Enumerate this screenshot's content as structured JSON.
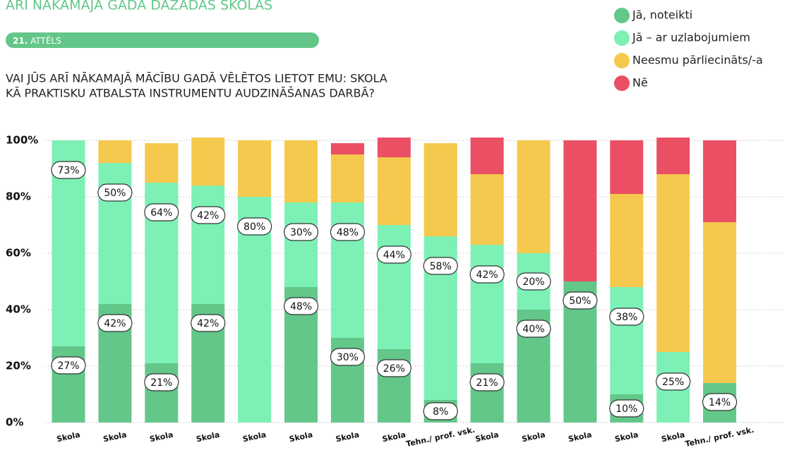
{
  "chart_data": {
    "type": "stacked_bar",
    "title": "ARĪ NĀKAMAJĀ GADĀ DAŽĀDĀS SKOLĀS",
    "figure_number": "21.",
    "figure_label": "ATTĒLS",
    "subtitle": [
      "VAI JŪS ARĪ NĀKAMAJĀ MĀCĪBU GADĀ VĒLĒTOS LIETOT EMU: SKOLA",
      "KĀ PRAKTISKU ATBALSTA INSTRUMENTU AUDZINĀŠANAS DARBĀ?"
    ],
    "categories": [
      "Skola",
      "Skola",
      "Skola",
      "Skola",
      "Skola",
      "Skola",
      "Skola",
      "Skola",
      "Tehn./ prof. vsk.",
      "Skola",
      "Skola",
      "Skola",
      "Skola",
      "Skola",
      "Tehn./ prof. vsk."
    ],
    "series": [
      {
        "name": "Jā, noteikti",
        "color": "#63c78a",
        "values": [
          27,
          42,
          21,
          42,
          0,
          48,
          30,
          26,
          8,
          21,
          40,
          50,
          10,
          0,
          14
        ],
        "value_labels": [
          "27%",
          "42%",
          "21%",
          "42%",
          null,
          "48%",
          "30%",
          "26%",
          "8%",
          "21%",
          "40%",
          "50%",
          "10%",
          null,
          "14%"
        ]
      },
      {
        "name": "Jā – ar uzlabojumiem",
        "color": "#7df0b5",
        "values": [
          73,
          50,
          64,
          42,
          80,
          30,
          48,
          44,
          58,
          42,
          20,
          0,
          38,
          25,
          0
        ],
        "value_labels": [
          "73%",
          "50%",
          "64%",
          "42%",
          "80%",
          "30%",
          "48%",
          "44%",
          "58%",
          "42%",
          "20%",
          null,
          "38%",
          "25%",
          null
        ]
      },
      {
        "name": "Neesmu pārliecināts/-a",
        "color": "#f5c94d",
        "values": [
          0,
          8,
          14,
          17,
          20,
          22,
          17,
          24,
          33,
          25,
          40,
          0,
          33,
          63,
          57
        ]
      },
      {
        "name": "Nē",
        "color": "#ea4f64",
        "values": [
          0,
          0,
          0,
          0,
          0,
          0,
          4,
          7,
          0,
          13,
          0,
          50,
          19,
          13,
          29
        ]
      }
    ],
    "ylim": [
      0,
      100
    ],
    "yticks": [
      {
        "value": 0,
        "label": "0%"
      },
      {
        "value": 20,
        "label": "20%"
      },
      {
        "value": 40,
        "label": "40%"
      },
      {
        "value": 60,
        "label": "60%"
      },
      {
        "value": 80,
        "label": "80%"
      },
      {
        "value": 100,
        "label": "100%"
      }
    ],
    "grid": true
  }
}
